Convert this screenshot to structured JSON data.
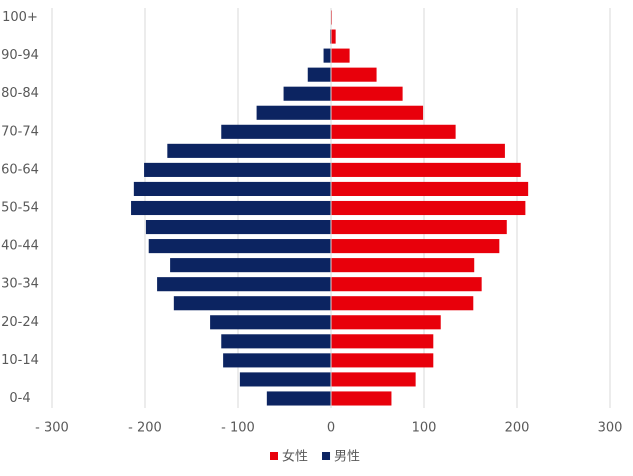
{
  "chart_data": {
    "type": "pyramid",
    "categories": [
      "0-4",
      null,
      "10-14",
      null,
      "20-24",
      null,
      "30-34",
      null,
      "40-44",
      null,
      "50-54",
      null,
      "60-64",
      null,
      "70-74",
      null,
      "80-84",
      null,
      "90-94",
      null,
      "100+"
    ],
    "series": [
      {
        "name": "女性",
        "color": "#e8000b",
        "values": [
          65,
          91,
          110,
          110,
          118,
          153,
          162,
          154,
          181,
          189,
          209,
          212,
          204,
          187,
          134,
          99,
          77,
          49,
          20,
          5,
          1
        ]
      },
      {
        "name": "男性",
        "color": "#0c2461",
        "values": [
          -69,
          -98,
          -116,
          -118,
          -130,
          -169,
          -187,
          -173,
          -196,
          -199,
          -215,
          -212,
          -201,
          -176,
          -118,
          -80,
          -51,
          -25,
          -8,
          -1,
          0
        ]
      }
    ],
    "xlim": [
      -300,
      300
    ],
    "xticks": [
      {
        "value": -300,
        "label": "- 300"
      },
      {
        "value": -200,
        "label": "- 200"
      },
      {
        "value": -100,
        "label": "- 100"
      },
      0,
      100,
      200,
      300
    ],
    "grid": true,
    "legend": "bottom"
  }
}
